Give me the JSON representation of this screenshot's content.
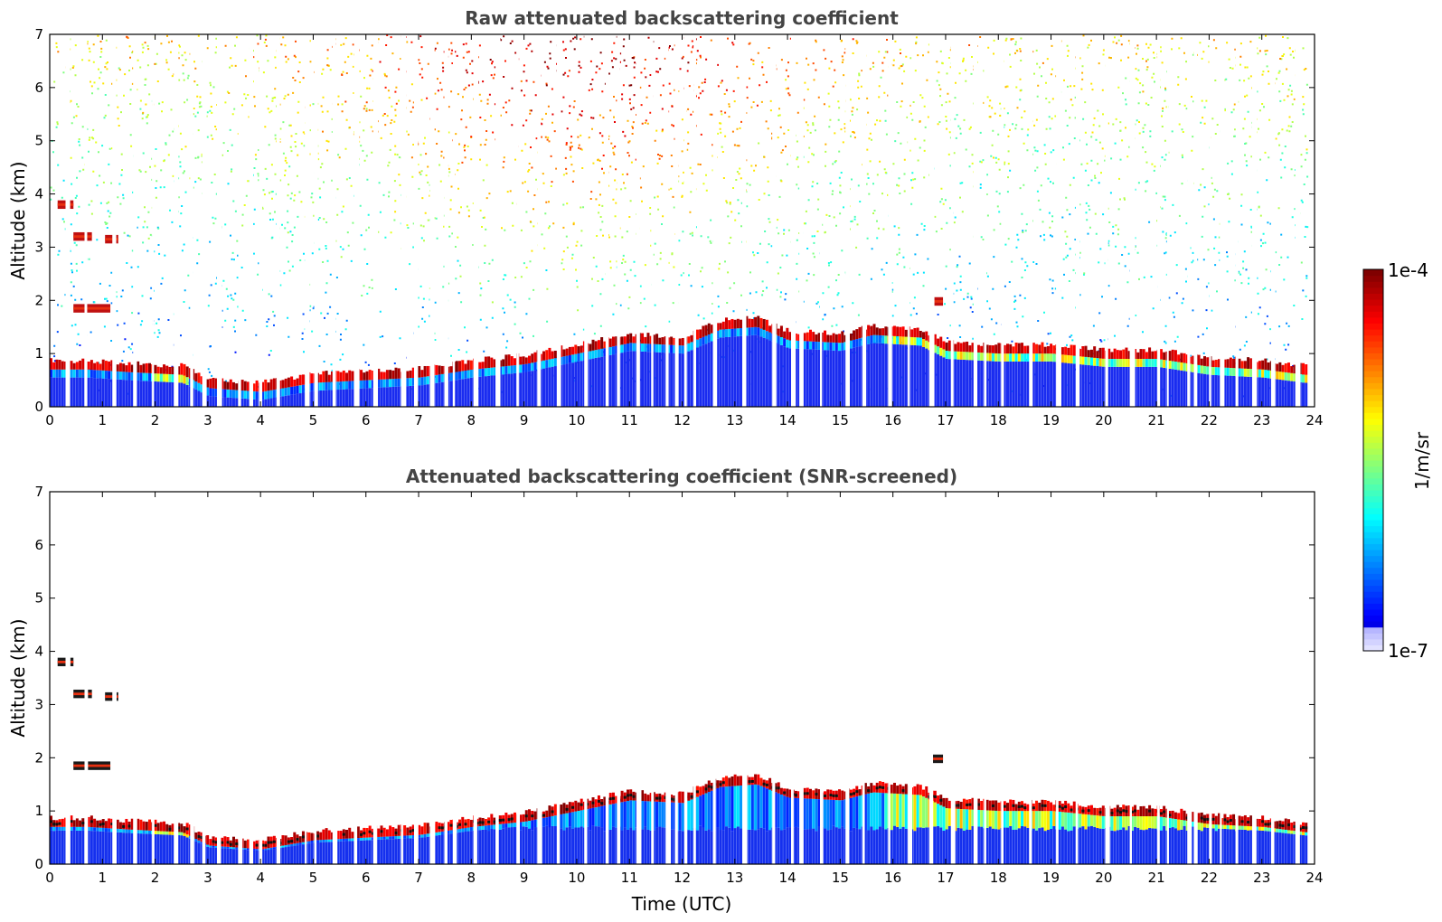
{
  "chart_data": [
    {
      "type": "heatmap",
      "title": "Raw attenuated backscattering coefficient",
      "xlabel": "",
      "ylabel": "Altitude (km)",
      "xlim": [
        0,
        24
      ],
      "ylim": [
        0,
        7
      ],
      "x_ticks": [
        "0",
        "1",
        "2",
        "3",
        "4",
        "5",
        "6",
        "7",
        "8",
        "9",
        "10",
        "11",
        "12",
        "13",
        "14",
        "15",
        "16",
        "17",
        "18",
        "19",
        "20",
        "21",
        "22",
        "23",
        "24"
      ],
      "y_ticks": [
        "0",
        "1",
        "2",
        "3",
        "4",
        "5",
        "6",
        "7"
      ],
      "screened": false,
      "layer_altitude_km": {
        "x": [
          0.7,
          1.5,
          2.5,
          3.0,
          4.0,
          5.0,
          6.0,
          7.0,
          8.0,
          9.0,
          10.0,
          11.0,
          12.0,
          12.7,
          13.4,
          14.0,
          15.0,
          15.6,
          16.5,
          17.0,
          18.0,
          19.0,
          20.0,
          21.0,
          22.0,
          23.0,
          23.8
        ],
        "y": [
          0.7,
          0.65,
          0.6,
          0.35,
          0.28,
          0.45,
          0.5,
          0.55,
          0.7,
          0.8,
          1.0,
          1.2,
          1.15,
          1.45,
          1.5,
          1.25,
          1.2,
          1.35,
          1.3,
          1.05,
          1.0,
          1.0,
          0.9,
          0.9,
          0.75,
          0.7,
          0.6
        ]
      },
      "elevated_layers": [
        {
          "x_start": 0.15,
          "x_end": 0.45,
          "altitude_km": 3.8
        },
        {
          "x_start": 0.45,
          "x_end": 0.8,
          "altitude_km": 3.2
        },
        {
          "x_start": 1.05,
          "x_end": 1.3,
          "altitude_km": 3.15
        },
        {
          "x_start": 0.45,
          "x_end": 1.15,
          "altitude_km": 1.85
        },
        {
          "x_start": 16.75,
          "x_end": 16.95,
          "altitude_km": 1.98
        }
      ]
    },
    {
      "type": "heatmap",
      "title": "Attenuated backscattering coefficient (SNR-screened)",
      "xlabel": "Time (UTC)",
      "ylabel": "Altitude (km)",
      "xlim": [
        0,
        24
      ],
      "ylim": [
        0,
        7
      ],
      "x_ticks": [
        "0",
        "1",
        "2",
        "3",
        "4",
        "5",
        "6",
        "7",
        "8",
        "9",
        "10",
        "11",
        "12",
        "13",
        "14",
        "15",
        "16",
        "17",
        "18",
        "19",
        "20",
        "21",
        "22",
        "23",
        "24"
      ],
      "y_ticks": [
        "0",
        "1",
        "2",
        "3",
        "4",
        "5",
        "6",
        "7"
      ],
      "screened": true
    }
  ],
  "colorbar": {
    "label": "1/m/sr",
    "max_label": "1e-4",
    "min_label": "1e-7",
    "colormap": "jet"
  }
}
